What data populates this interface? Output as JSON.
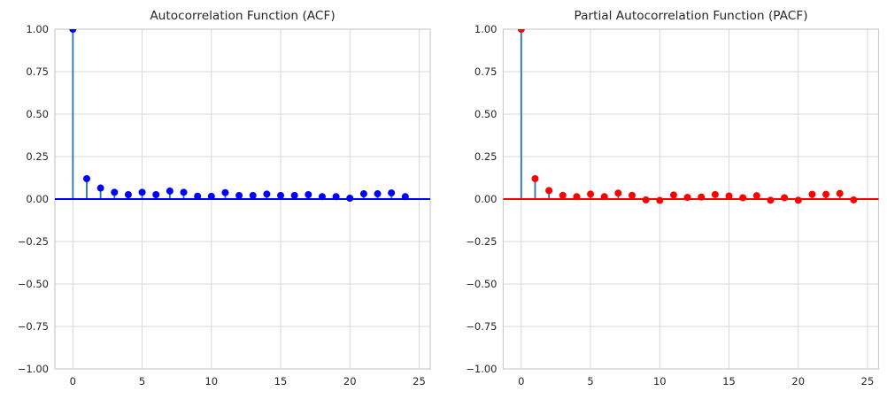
{
  "figure": {
    "background": "#ffffff"
  },
  "colors": {
    "grid": "#d9d9d9",
    "axes_border": "#cccccc",
    "text": "#262626",
    "acf_stem": "#1f77b4",
    "acf_marker": "#0000ff",
    "acf_baseline": "#0000ff",
    "pacf_stem": "#1f77b4",
    "pacf_marker": "#ff0000",
    "pacf_baseline": "#ff0000"
  },
  "chart_data": [
    {
      "type": "stem",
      "title": "Autocorrelation Function (ACF)",
      "xlabel": "",
      "ylabel": "",
      "grid": true,
      "legend": "none",
      "xlim": [
        -1.3,
        25.8
      ],
      "ylim": [
        -1.0,
        1.0
      ],
      "x": [
        0,
        1,
        2,
        3,
        4,
        5,
        6,
        7,
        8,
        9,
        10,
        11,
        12,
        13,
        14,
        15,
        16,
        17,
        18,
        19,
        20,
        21,
        22,
        23,
        24
      ],
      "values": [
        1.0,
        0.12,
        0.065,
        0.04,
        0.026,
        0.04,
        0.026,
        0.047,
        0.04,
        0.017,
        0.016,
        0.038,
        0.021,
        0.021,
        0.029,
        0.021,
        0.021,
        0.026,
        0.014,
        0.014,
        0.005,
        0.031,
        0.031,
        0.036,
        0.014
      ],
      "x_ticks": {
        "values": [
          0,
          5,
          10,
          15,
          20,
          25
        ],
        "labels": [
          "0",
          "5",
          "10",
          "15",
          "20",
          "25"
        ]
      },
      "y_ticks": {
        "values": [
          1.0,
          0.75,
          0.5,
          0.25,
          0.0,
          -0.25,
          -0.5,
          -0.75,
          -1.0
        ],
        "labels": [
          "1.00",
          "0.75",
          "0.50",
          "0.25",
          "0.00",
          "−0.25",
          "−0.50",
          "−0.75",
          "−1.00"
        ]
      },
      "stem_color": "#1f77b4",
      "marker_color": "#0000ff",
      "baseline_color": "#0000ff"
    },
    {
      "type": "stem",
      "title": "Partial Autocorrelation Function (PACF)",
      "xlabel": "",
      "ylabel": "",
      "grid": true,
      "legend": "none",
      "xlim": [
        -1.3,
        25.8
      ],
      "ylim": [
        -1.0,
        1.0
      ],
      "x": [
        0,
        1,
        2,
        3,
        4,
        5,
        6,
        7,
        8,
        9,
        10,
        11,
        12,
        13,
        14,
        15,
        16,
        17,
        18,
        19,
        20,
        21,
        22,
        23,
        24
      ],
      "values": [
        1.0,
        0.12,
        0.05,
        0.022,
        0.014,
        0.029,
        0.014,
        0.035,
        0.022,
        -0.005,
        -0.008,
        0.024,
        0.01,
        0.012,
        0.027,
        0.018,
        0.008,
        0.02,
        -0.007,
        0.008,
        -0.007,
        0.028,
        0.028,
        0.033,
        -0.005
      ],
      "x_ticks": {
        "values": [
          0,
          5,
          10,
          15,
          20,
          25
        ],
        "labels": [
          "0",
          "5",
          "10",
          "15",
          "20",
          "25"
        ]
      },
      "y_ticks": {
        "values": [
          1.0,
          0.75,
          0.5,
          0.25,
          0.0,
          -0.25,
          -0.5,
          -0.75,
          -1.0
        ],
        "labels": [
          "1.00",
          "0.75",
          "0.50",
          "0.25",
          "0.00",
          "−0.25",
          "−0.50",
          "−0.75",
          "−1.00"
        ]
      },
      "stem_color": "#1f77b4",
      "marker_color": "#ff0000",
      "baseline_color": "#ff0000"
    }
  ]
}
